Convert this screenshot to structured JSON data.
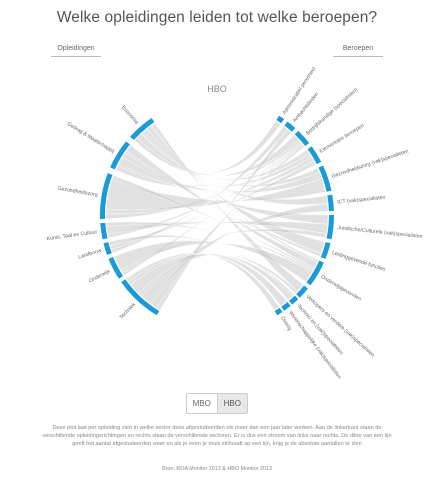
{
  "title": "Welke opleidingen leiden tot welke beroepen?",
  "headers": {
    "left": "Opleidingen",
    "right": "Beroepen"
  },
  "toggle": {
    "options": [
      "MBO",
      "HBO"
    ],
    "selected": "HBO"
  },
  "description": "Deze plot laat per opleiding zien in welke sector deze afgestudeerden els meer dan een jaar later werken. Aan de linkerkant staan de verschillende opleidingsrichtingen en rechts staan de verschillende sectoren. Er is dus een stroom van links naar rechts. De dikte van een lijn geeft het aantal afgestudeerden weer en als je even je muis stilhoudt op een lijn, krijg je de absolute aantallen te zien",
  "source": "Bron: ROA Monitor 2013 & HBO Monitor 2013",
  "colors": {
    "accent": "#1a9bd7",
    "ribbon": "#c8c8c8"
  },
  "chart_data": {
    "type": "chord",
    "title": "HBO",
    "left_groups": [
      "Economie",
      "Gedrag & Maatschappij",
      "Gezondheidszorg",
      "Kunst, Taal en Cultuur",
      "Landbouw",
      "Onderwijs",
      "Techniek"
    ],
    "right_groups": [
      "Administratief personeel",
      "Ambachtslieden",
      "Bedrijfskundige (specialisten)",
      "Elementaire beroepen",
      "Gezondheidszorg (vak)specialisten",
      "ICT (vak)specialisten",
      "Juridische/Culturele (vak)specialisten",
      "Leidinggevende functies",
      "Onderwijsgevenden",
      "Verkopers en verdere (vak)specialisten",
      "Technici en (vak)specialisten",
      "Wetenschappelijke (vak)specialisten",
      "Overig"
    ]
  }
}
